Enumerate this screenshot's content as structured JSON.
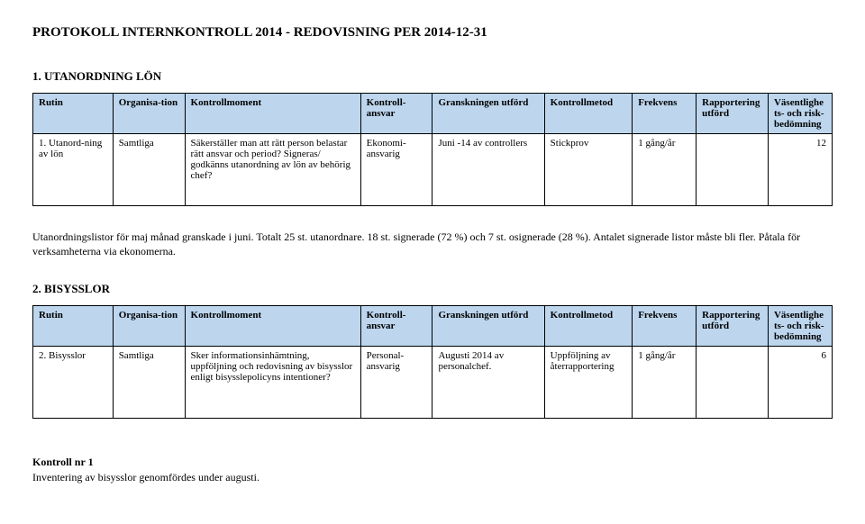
{
  "title": "PROTOKOLL INTERNKONTROLL 2014 - REDOVISNING PER 2014-12-31",
  "section1": {
    "heading": "1.   UTANORDNING LÖN",
    "headers": {
      "rutin": "Rutin",
      "org": "Organisa-tion",
      "moment": "Kontrollmoment",
      "ansvar": "Kontroll-ansvar",
      "gransk": "Granskningen utförd",
      "metod": "Kontrollmetod",
      "frek": "Frekvens",
      "rapp": "Rapportering utförd",
      "vasent": "Väsentlighets- och risk-bedömning"
    },
    "row": {
      "rutin": "1. Utanord-ning av lön",
      "org": "Samtliga",
      "moment": "Säkerställer man att rätt person belastar rätt ansvar och period? Signeras/ godkänns utanordning av lön av behörig chef?",
      "ansvar": "Ekonomi-ansvarig",
      "gransk": "Juni -14 av controllers",
      "metod": "Stickprov",
      "frek": "1 gång/år",
      "rapp": "",
      "vasent": "12"
    },
    "paragraph": "Utanordningslistor för maj månad granskade i juni. Totalt 25 st. utanordnare. 18 st. signerade (72 %) och 7 st. osignerade (28 %). Antalet signerade listor måste bli fler. Påtala för verksamheterna via ekonomerna."
  },
  "section2": {
    "heading": "2.   BISYSSLOR",
    "headers": {
      "rutin": "Rutin",
      "org": "Organisa-tion",
      "moment": "Kontrollmoment",
      "ansvar": "Kontroll-ansvar",
      "gransk": "Granskningen utförd",
      "metod": "Kontrollmetod",
      "frek": "Frekvens",
      "rapp": "Rapportering utförd",
      "vasent": "Väsentlighets- och risk-bedömning"
    },
    "row": {
      "rutin": "2. Bisysslor",
      "org": "Samtliga",
      "moment": "Sker informationsinhämtning, uppföljning och redovisning av bisysslor enligt bisysslepolicyns intentioner?",
      "ansvar": "Personal-ansvarig",
      "gransk": "Augusti 2014 av personalchef.",
      "metod": "Uppföljning av återrapportering",
      "frek": "1 gång/år",
      "rapp": "",
      "vasent": "6"
    },
    "kontroll": {
      "label": "Kontroll nr 1",
      "text": "Inventering av bisysslor genomfördes under augusti."
    }
  }
}
